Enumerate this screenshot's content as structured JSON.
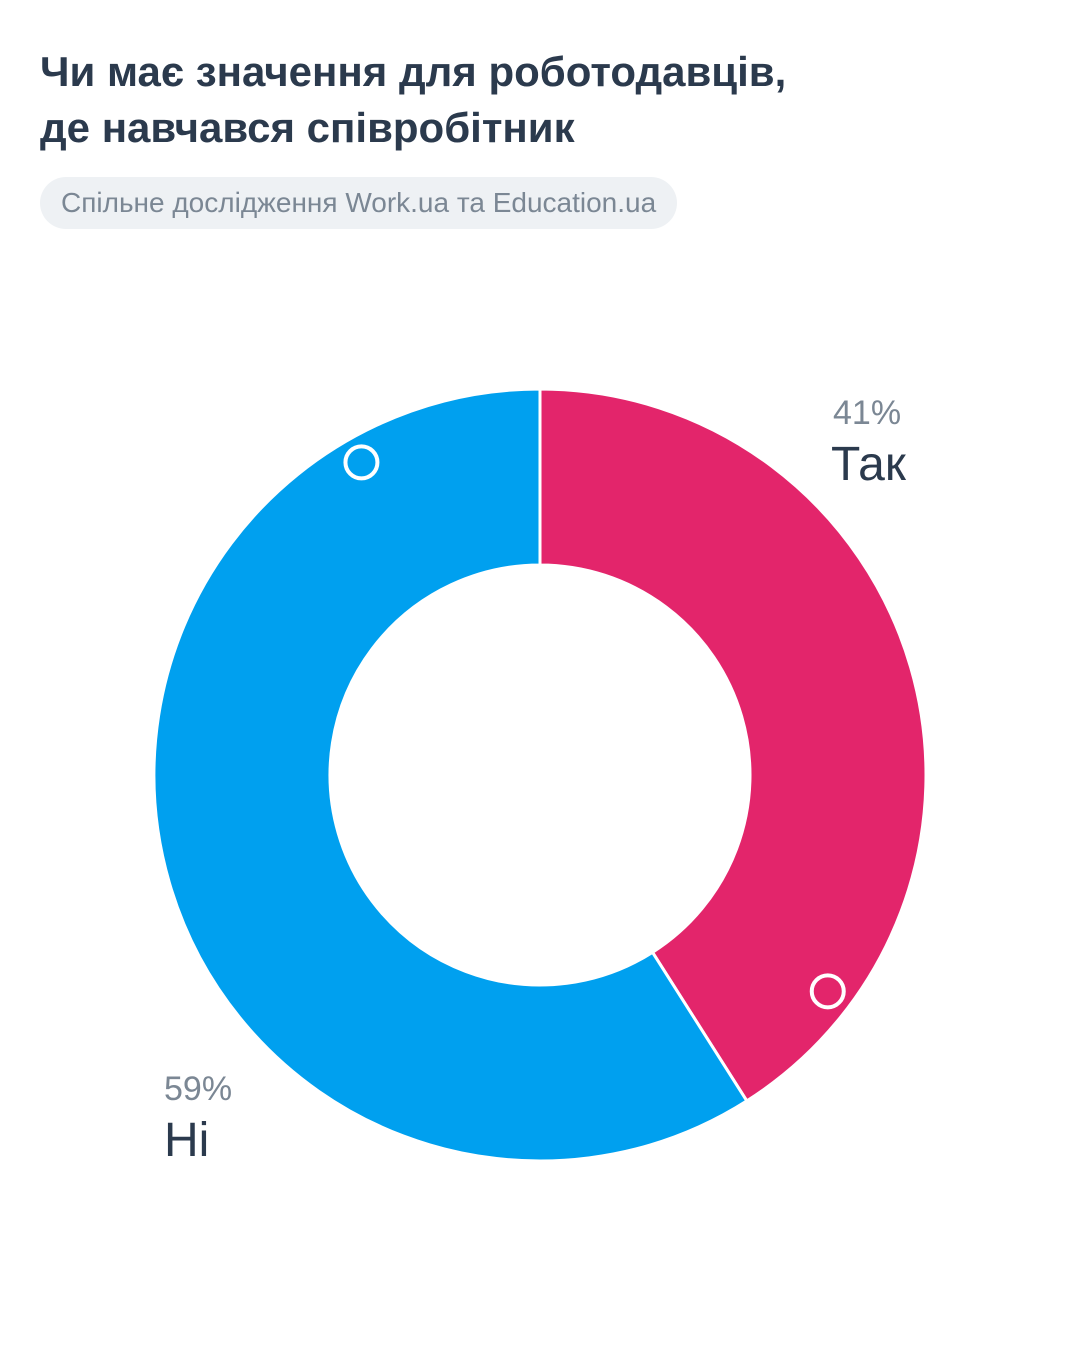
{
  "header": {
    "title_line1": "Чи має значення для роботодавців,",
    "title_line2": "де навчався співробітник",
    "source": "Спільне дослідження Work.ua та Education.ua"
  },
  "chart_data": {
    "type": "pie",
    "donut": true,
    "categories": [
      "Так",
      "Ні"
    ],
    "values": [
      41,
      59
    ],
    "value_labels": [
      "41%",
      "59%"
    ],
    "colors": [
      "#e3256b",
      "#00a0ef"
    ],
    "legend": "none"
  }
}
